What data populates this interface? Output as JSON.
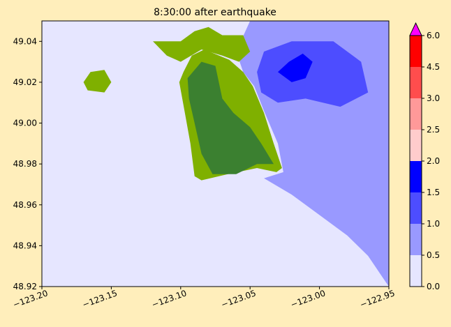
{
  "chart_data": {
    "type": "heatmap",
    "title": "8:30:00 after earthquake",
    "xlabel": "",
    "ylabel": "",
    "xlim": [
      -123.2,
      -122.95
    ],
    "ylim": [
      48.92,
      49.05
    ],
    "x_ticks": [
      -123.2,
      -123.15,
      -123.1,
      -123.05,
      -123.0,
      -122.95
    ],
    "x_tick_labels": [
      "−123.20",
      "−123.15",
      "−123.10",
      "−123.05",
      "−123.00",
      "−122.95"
    ],
    "y_ticks": [
      48.92,
      48.94,
      48.96,
      48.98,
      49.0,
      49.02,
      49.04
    ],
    "y_tick_labels": [
      "48.92",
      "48.94",
      "48.96",
      "48.98",
      "49.00",
      "49.02",
      "49.04"
    ],
    "colorbar": {
      "levels": [
        0.0,
        0.5,
        1.0,
        1.5,
        2.0,
        2.5,
        3.0,
        4.5,
        6.0
      ],
      "tick_labels": [
        "0.0",
        "0.5",
        "1.0",
        "1.5",
        "2.0",
        "2.5",
        "3.0",
        "4.5",
        "6.0"
      ],
      "colors": [
        "#e6e6ff",
        "#9999ff",
        "#4d4dff",
        "#0000ff",
        "#ffcccc",
        "#ff9999",
        "#ff4d4d",
        "#ff0000"
      ],
      "extend_max_color": "#ff00ff",
      "extend": "max"
    },
    "land_colors": [
      "#7fb000",
      "#3b8030"
    ],
    "grid": false,
    "legend": "none",
    "regions": [
      {
        "name": "main-land",
        "level": "land",
        "polygon": [
          [
            -123.098,
            49.025
          ],
          [
            -123.092,
            49.033
          ],
          [
            -123.083,
            49.036
          ],
          [
            -123.065,
            49.031
          ],
          [
            -123.055,
            49.025
          ],
          [
            -123.048,
            49.018
          ],
          [
            -123.04,
            49.005
          ],
          [
            -123.033,
            48.99
          ],
          [
            -123.027,
            48.978
          ],
          [
            -123.031,
            48.976
          ],
          [
            -123.045,
            48.978
          ],
          [
            -123.066,
            48.975
          ],
          [
            -123.085,
            48.972
          ],
          [
            -123.09,
            48.974
          ],
          [
            -123.093,
            48.99
          ],
          [
            -123.097,
            49.005
          ],
          [
            -123.101,
            49.02
          ]
        ]
      },
      {
        "name": "dark-core",
        "level": "land-dark",
        "polygon": [
          [
            -123.095,
            49.022
          ],
          [
            -123.085,
            49.03
          ],
          [
            -123.075,
            49.028
          ],
          [
            -123.07,
            49.012
          ],
          [
            -123.062,
            49.005
          ],
          [
            -123.05,
            48.998
          ],
          [
            -123.042,
            48.99
          ],
          [
            -123.033,
            48.98
          ],
          [
            -123.045,
            48.98
          ],
          [
            -123.06,
            48.975
          ],
          [
            -123.077,
            48.975
          ],
          [
            -123.085,
            48.985
          ],
          [
            -123.09,
            49.0
          ],
          [
            -123.094,
            49.012
          ]
        ]
      },
      {
        "name": "north-land",
        "level": "land",
        "polygon": [
          [
            -123.12,
            49.04
          ],
          [
            -123.1,
            49.04
          ],
          [
            -123.09,
            49.045
          ],
          [
            -123.08,
            49.047
          ],
          [
            -123.07,
            49.043
          ],
          [
            -123.055,
            49.043
          ],
          [
            -123.05,
            49.035
          ],
          [
            -123.058,
            49.03
          ],
          [
            -123.07,
            49.033
          ],
          [
            -123.085,
            49.036
          ],
          [
            -123.1,
            49.03
          ],
          [
            -123.11,
            49.033
          ]
        ]
      },
      {
        "name": "west-land",
        "level": "land",
        "polygon": [
          [
            -123.17,
            49.02
          ],
          [
            -123.165,
            49.025
          ],
          [
            -123.155,
            49.026
          ],
          [
            -123.15,
            49.02
          ],
          [
            -123.155,
            49.015
          ],
          [
            -123.167,
            49.016
          ]
        ]
      },
      {
        "name": "shore-1",
        "level": "0.5",
        "polygon": [
          [
            -123.05,
            49.05
          ],
          [
            -122.95,
            49.05
          ],
          [
            -122.95,
            48.92
          ],
          [
            -122.953,
            48.923
          ],
          [
            -122.965,
            48.935
          ],
          [
            -122.98,
            48.945
          ],
          [
            -123.0,
            48.955
          ],
          [
            -123.02,
            48.965
          ],
          [
            -123.04,
            48.973
          ],
          [
            -123.026,
            48.976
          ],
          [
            -123.03,
            48.99
          ],
          [
            -123.04,
            49.006
          ],
          [
            -123.047,
            49.018
          ],
          [
            -123.055,
            49.025
          ],
          [
            -123.06,
            49.035
          ]
        ]
      },
      {
        "name": "shore-2",
        "level": "1.0",
        "polygon": [
          [
            -123.045,
            49.025
          ],
          [
            -123.04,
            49.035
          ],
          [
            -123.02,
            49.04
          ],
          [
            -122.99,
            49.04
          ],
          [
            -122.97,
            49.03
          ],
          [
            -122.965,
            49.015
          ],
          [
            -122.985,
            49.008
          ],
          [
            -123.01,
            49.012
          ],
          [
            -123.03,
            49.01
          ],
          [
            -123.042,
            49.015
          ]
        ]
      },
      {
        "name": "shore-3",
        "level": "1.5",
        "polygon": [
          [
            -123.012,
            49.034
          ],
          [
            -123.005,
            49.03
          ],
          [
            -123.01,
            49.022
          ],
          [
            -123.02,
            49.02
          ],
          [
            -123.03,
            49.025
          ],
          [
            -123.022,
            49.03
          ]
        ]
      }
    ]
  }
}
